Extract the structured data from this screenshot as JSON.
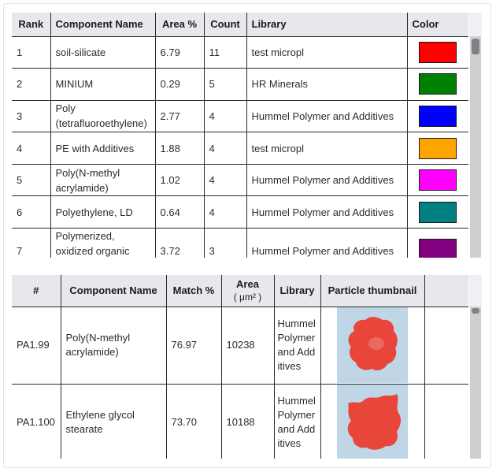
{
  "components_table": {
    "headers": {
      "rank": "Rank",
      "name": "Component Name",
      "area": "Area %",
      "count": "Count",
      "library": "Library",
      "color": "Color"
    },
    "rows": [
      {
        "rank": "1",
        "name": "soil-silicate",
        "area": "6.79",
        "count": "11",
        "library": "test micropl",
        "color": "#ff0000"
      },
      {
        "rank": "2",
        "name": "MINIUM",
        "area": "0.29",
        "count": "5",
        "library": "HR Minerals",
        "color": "#008000"
      },
      {
        "rank": "3",
        "name": "Poly (tetrafluoroethylene)",
        "area": "2.77",
        "count": "4",
        "library": "Hummel Polymer and Additives",
        "color": "#0000ff"
      },
      {
        "rank": "4",
        "name": "PE with Additives",
        "area": "1.88",
        "count": "4",
        "library": "test micropl",
        "color": "#ffa500"
      },
      {
        "rank": "5",
        "name": "Poly(N-methyl acrylamide)",
        "area": "1.02",
        "count": "4",
        "library": "Hummel Polymer and Additives",
        "color": "#ff00ff"
      },
      {
        "rank": "6",
        "name": "Polyethylene, LD",
        "area": "0.64",
        "count": "4",
        "library": "Hummel Polymer and Additives",
        "color": "#008080"
      },
      {
        "rank": "7",
        "name": "Polymerized, oxidized organic",
        "area": "3.72",
        "count": "3",
        "library": "Hummel Polymer and Additives",
        "color": "#800080"
      }
    ]
  },
  "particles_table": {
    "headers": {
      "id": "#",
      "name": "Component Name",
      "match": "Match %",
      "area": "Area",
      "area_unit": "( μm² )",
      "library": "Library",
      "thumbnail": "Particle thumbnail"
    },
    "rows": [
      {
        "id": "PA1.99",
        "name": "Poly(N-methyl acrylamide)",
        "match": "76.97",
        "area": "10238",
        "library": "Hummel Polymer and Additives"
      },
      {
        "id": "PA1.100",
        "name": "Ethylene glycol stearate",
        "match": "73.70",
        "area": "10188",
        "library": "Hummel Polymer and Additives"
      }
    ]
  },
  "colors": {
    "header_bg": "#e6e8ee",
    "scrollbar_track": "#cfcfcf",
    "scrollbar_thumb": "#7f8287",
    "particle_fill": "#e8463b",
    "thumbnail_bg": "#bfd6e6"
  }
}
